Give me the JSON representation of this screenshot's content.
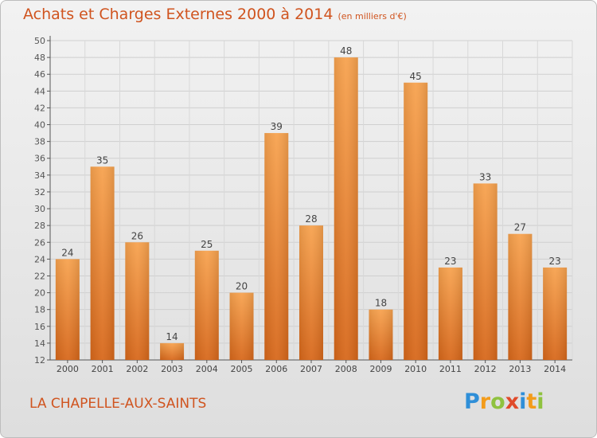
{
  "header": {
    "title": "Achats et Charges Externes 2000 à 2014",
    "unit": "(en milliers d'€)"
  },
  "footer": {
    "commune": "LA CHAPELLE-AUX-SAINTS",
    "logo_text": "Proxiti",
    "logo_letters": [
      {
        "ch": "P",
        "color": "#2f8fd8"
      },
      {
        "ch": "r",
        "color": "#f39c1a"
      },
      {
        "ch": "o",
        "color": "#8fc23f"
      },
      {
        "ch": "x",
        "color": "#e04a2a"
      },
      {
        "ch": "i",
        "color": "#2f8fd8"
      },
      {
        "ch": "t",
        "color": "#f39c1a"
      },
      {
        "ch": "i",
        "color": "#8fc23f"
      }
    ]
  },
  "colors": {
    "bar_top": "#f7a24e",
    "bar_bottom": "#d7671a",
    "accent": "#d0541f"
  },
  "chart_data": {
    "type": "bar",
    "categories": [
      "2000",
      "2001",
      "2002",
      "2003",
      "2004",
      "2005",
      "2006",
      "2007",
      "2008",
      "2009",
      "2010",
      "2011",
      "2012",
      "2013",
      "2014"
    ],
    "values": [
      24,
      35,
      26,
      14,
      25,
      20,
      39,
      28,
      48,
      18,
      45,
      23,
      33,
      27,
      23
    ],
    "title": "Achats et Charges Externes 2000 à 2014",
    "xlabel": "",
    "ylabel": "",
    "ylim": [
      12,
      50
    ],
    "yticks": [
      12,
      14,
      16,
      18,
      20,
      22,
      24,
      26,
      28,
      30,
      32,
      34,
      36,
      38,
      40,
      42,
      44,
      46,
      48,
      50
    ],
    "grid": true,
    "data_labels": true
  }
}
